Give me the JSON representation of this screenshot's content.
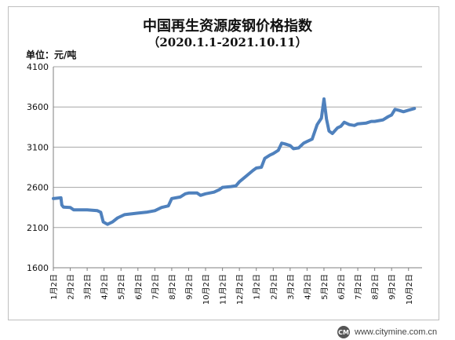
{
  "chart_data": {
    "type": "line",
    "title": "中国再生资源废钢价格指数",
    "subtitle": "（2020.1.1-2021.10.11）",
    "ylabel": "单位：元/吨",
    "xlabel": "",
    "ylim": [
      1600,
      4100
    ],
    "yticks": [
      1600,
      2100,
      2600,
      3100,
      3600,
      4100
    ],
    "xlim": [
      0,
      21.8
    ],
    "xticks": [
      {
        "x": 0,
        "label": "1月2日"
      },
      {
        "x": 1,
        "label": "2月2日"
      },
      {
        "x": 2,
        "label": "3月2日"
      },
      {
        "x": 3,
        "label": "4月2日"
      },
      {
        "x": 4,
        "label": "5月2日"
      },
      {
        "x": 5,
        "label": "6月2日"
      },
      {
        "x": 6,
        "label": "7月2日"
      },
      {
        "x": 7,
        "label": "8月2日"
      },
      {
        "x": 8,
        "label": "9月2日"
      },
      {
        "x": 9,
        "label": "10月2日"
      },
      {
        "x": 10,
        "label": "11月2日"
      },
      {
        "x": 11,
        "label": "12月2日"
      },
      {
        "x": 12,
        "label": "1月2日"
      },
      {
        "x": 13,
        "label": "2月2日"
      },
      {
        "x": 14,
        "label": "3月2日"
      },
      {
        "x": 15,
        "label": "4月2日"
      },
      {
        "x": 16,
        "label": "5月2日"
      },
      {
        "x": 17,
        "label": "6月2日"
      },
      {
        "x": 18,
        "label": "7月2日"
      },
      {
        "x": 19,
        "label": "8月2日"
      },
      {
        "x": 20,
        "label": "9月2日"
      },
      {
        "x": 21,
        "label": "10月2日"
      }
    ],
    "grid": true,
    "legend": "none",
    "line_color": "#4f81bd",
    "series": [
      {
        "values": [
          [
            0,
            2460
          ],
          [
            0.45,
            2470
          ],
          [
            0.5,
            2380
          ],
          [
            0.6,
            2355
          ],
          [
            1.0,
            2350
          ],
          [
            1.2,
            2320
          ],
          [
            2.0,
            2320
          ],
          [
            2.6,
            2310
          ],
          [
            2.8,
            2290
          ],
          [
            2.95,
            2170
          ],
          [
            3.2,
            2140
          ],
          [
            3.5,
            2170
          ],
          [
            3.8,
            2220
          ],
          [
            4.2,
            2260
          ],
          [
            4.6,
            2270
          ],
          [
            5.0,
            2280
          ],
          [
            5.5,
            2290
          ],
          [
            6.0,
            2310
          ],
          [
            6.4,
            2350
          ],
          [
            6.8,
            2370
          ],
          [
            7.0,
            2460
          ],
          [
            7.5,
            2480
          ],
          [
            7.8,
            2520
          ],
          [
            8.0,
            2530
          ],
          [
            8.5,
            2530
          ],
          [
            8.7,
            2500
          ],
          [
            9.0,
            2520
          ],
          [
            9.5,
            2540
          ],
          [
            9.8,
            2570
          ],
          [
            10.0,
            2600
          ],
          [
            10.5,
            2610
          ],
          [
            10.8,
            2620
          ],
          [
            11.0,
            2670
          ],
          [
            11.4,
            2740
          ],
          [
            11.8,
            2810
          ],
          [
            12.0,
            2840
          ],
          [
            12.3,
            2850
          ],
          [
            12.5,
            2960
          ],
          [
            12.8,
            3000
          ],
          [
            13.0,
            3020
          ],
          [
            13.3,
            3060
          ],
          [
            13.5,
            3150
          ],
          [
            13.7,
            3140
          ],
          [
            14.0,
            3120
          ],
          [
            14.2,
            3080
          ],
          [
            14.5,
            3090
          ],
          [
            14.8,
            3150
          ],
          [
            15.0,
            3170
          ],
          [
            15.3,
            3200
          ],
          [
            15.6,
            3380
          ],
          [
            15.85,
            3460
          ],
          [
            16.0,
            3700
          ],
          [
            16.15,
            3450
          ],
          [
            16.3,
            3300
          ],
          [
            16.5,
            3270
          ],
          [
            16.8,
            3340
          ],
          [
            17.0,
            3360
          ],
          [
            17.2,
            3410
          ],
          [
            17.5,
            3380
          ],
          [
            17.8,
            3370
          ],
          [
            18.0,
            3390
          ],
          [
            18.5,
            3400
          ],
          [
            18.8,
            3420
          ],
          [
            19.0,
            3420
          ],
          [
            19.5,
            3440
          ],
          [
            19.8,
            3480
          ],
          [
            20.0,
            3500
          ],
          [
            20.2,
            3570
          ],
          [
            20.4,
            3560
          ],
          [
            20.7,
            3540
          ],
          [
            21.0,
            3560
          ],
          [
            21.35,
            3580
          ]
        ]
      }
    ]
  },
  "watermark": {
    "logo_text": "CM",
    "text": "www.citymine.com.cn"
  }
}
